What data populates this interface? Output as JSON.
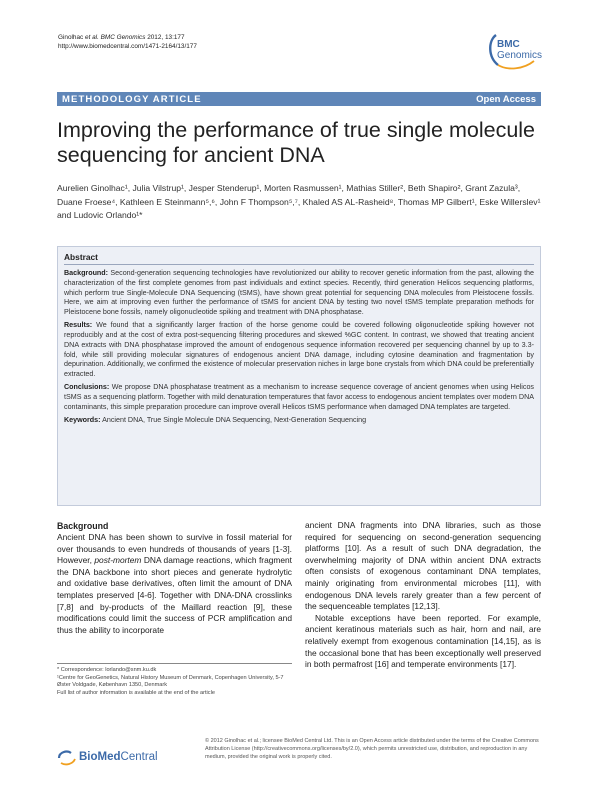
{
  "header": {
    "journal_authors": "Ginolhac",
    "journal_etal": "et al.",
    "journal_name": "BMC Genomics",
    "journal_vol": "2012, 13:177",
    "url": "http://www.biomedcentral.com/1471-2164/13/177",
    "logo_brand": "BMC",
    "logo_journal": "Genomics"
  },
  "banner": {
    "article_type": "METHODOLOGY ARTICLE",
    "access": "Open Access"
  },
  "title": "Improving the performance of true single molecule sequencing for ancient DNA",
  "authors_text": "Aurelien Ginolhac¹, Julia Vilstrup¹, Jesper Stenderup¹, Morten Rasmussen¹, Mathias Stiller², Beth Shapiro², Grant Zazula³, Duane Froese⁴, Kathleen E Steinmann⁵,⁶, John F Thompson⁵,⁷, Khaled AS AL-Rasheid⁸, Thomas MP Gilbert¹, Eske Willerslev¹ and Ludovic Orlando¹*",
  "abstract": {
    "heading": "Abstract",
    "background_label": "Background:",
    "background": "Second-generation sequencing technologies have revolutionized our ability to recover genetic information from the past, allowing the characterization of the first complete genomes from past individuals and extinct species. Recently, third generation Helicos sequencing platforms, which perform true Single-Molecule DNA Sequencing (tSMS), have shown great potential for sequencing DNA molecules from Pleistocene fossils. Here, we aim at improving even further the performance of tSMS for ancient DNA by testing two novel tSMS template preparation methods for Pleistocene bone fossils, namely oligonucleotide spiking and treatment with DNA phosphatase.",
    "results_label": "Results:",
    "results": "We found that a significantly larger fraction of the horse genome could be covered following oligonucleotide spiking however not reproducibly and at the cost of extra post-sequencing filtering procedures and skewed %GC content. In contrast, we showed that treating ancient DNA extracts with DNA phosphatase improved the amount of endogenous sequence information recovered per sequencing channel by up to 3.3-fold, while still providing molecular signatures of endogenous ancient DNA damage, including cytosine deamination and fragmentation by depurination. Additionally, we confirmed the existence of molecular preservation niches in large bone crystals from which DNA could be preferentially extracted.",
    "conclusions_label": "Conclusions:",
    "conclusions": "We propose DNA phosphatase treatment as a mechanism to increase sequence coverage of ancient genomes when using Helicos tSMS as a sequencing platform. Together with mild denaturation temperatures that favor access to endogenous ancient templates over modern DNA contaminants, this simple preparation procedure can improve overall Helicos tSMS performance when damaged DNA templates are targeted.",
    "keywords_label": "Keywords:",
    "keywords": "Ancient DNA, True Single Molecule DNA Sequencing, Next-Generation Sequencing"
  },
  "body": {
    "heading": "Background",
    "left_1": "Ancient DNA has been shown to survive in fossil material for over thousands to even hundreds of thousands of years [1-3]. However, ",
    "left_italic": "post-mortem",
    "left_2": " DNA damage reactions, which fragment the DNA backbone into short pieces and generate hydrolytic and oxidative base derivatives, often limit the amount of DNA templates preserved [4-6]. Together with DNA-DNA crosslinks [7,8] and by-products of the Maillard reaction [9], these modifications could limit the success of PCR amplification and thus the ability to incorporate",
    "right_1": "ancient DNA fragments into DNA libraries, such as those required for sequencing on second-generation sequencing platforms [10]. As a result of such DNA degradation, the overwhelming majority of DNA within ancient DNA extracts often consists of exogenous contaminant DNA templates, mainly originating from environmental microbes [11], with endogenous DNA levels rarely greater than a few percent of the sequenceable templates [12,13].",
    "right_2": "Notable exceptions have been reported. For example, ancient keratinous materials such as hair, horn and nail, are relatively exempt from exogenous contamination [14,15], as is the occasional bone that has been exceptionally well preserved in both permafrost [16] and temperate environments [17]."
  },
  "footnotes": {
    "correspondence": "* Correspondence: lorlando@snm.ku.dk",
    "affiliation": "¹Centre for GeoGenetics, Natural History Museum of Denmark, Copenhagen University, 5-7 Øster Voldgade, København 1350, Denmark",
    "full_list": "Full list of author information is available at the end of the article"
  },
  "footer": {
    "logo_bio": "BioMed",
    "logo_central": "Central",
    "license": "© 2012 Ginolhac et al.; licensee BioMed Central Ltd. This is an Open Access article distributed under the terms of the Creative Commons Attribution License (http://creativecommons.org/licenses/by/2.0), which permits unrestricted use, distribution, and reproduction in any medium, provided the original work is properly cited."
  },
  "colors": {
    "banner": "#5f86b8",
    "abstract_bg": "#edf0f6",
    "brand_blue": "#3c6aa8"
  }
}
